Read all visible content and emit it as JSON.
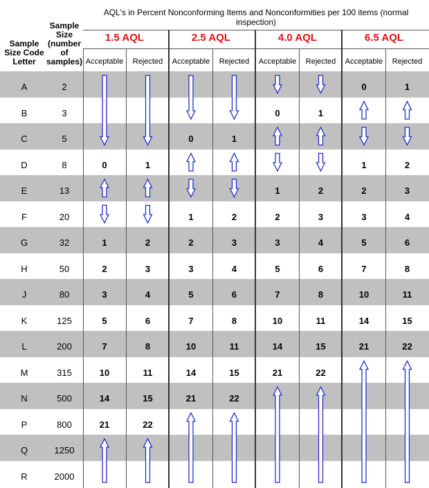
{
  "title": "AQL's in Percent Nonconforming Items and Nonconformities per 100 items (normal inspection)",
  "headers": {
    "code_line1": "Sample",
    "code_line2": "Size Code",
    "code_line3": "Letter",
    "size_line1": "Sample",
    "size_line2": "Size",
    "size_line3": "(number",
    "size_line4": "of",
    "size_line5": "samples)"
  },
  "aql_headers": [
    "1.5 AQL",
    "2.5 AQL",
    "4.0 AQL",
    "6.5 AQL"
  ],
  "sub_headers": {
    "accept": "Acceptable",
    "reject": "Rejected"
  },
  "rows": [
    {
      "code": "A",
      "size": "2",
      "v": [
        "",
        "",
        "",
        "",
        "",
        "",
        "0",
        "1"
      ]
    },
    {
      "code": "B",
      "size": "3",
      "v": [
        "",
        "",
        "",
        "",
        "0",
        "1",
        "",
        ""
      ]
    },
    {
      "code": "C",
      "size": "5",
      "v": [
        "",
        "",
        "0",
        "1",
        "",
        "",
        "",
        ""
      ]
    },
    {
      "code": "D",
      "size": "8",
      "v": [
        "0",
        "1",
        "",
        "",
        "",
        "",
        "1",
        "2"
      ]
    },
    {
      "code": "E",
      "size": "13",
      "v": [
        "",
        "",
        "",
        "",
        "1",
        "2",
        "2",
        "3"
      ]
    },
    {
      "code": "F",
      "size": "20",
      "v": [
        "",
        "",
        "1",
        "2",
        "2",
        "3",
        "3",
        "4"
      ]
    },
    {
      "code": "G",
      "size": "32",
      "v": [
        "1",
        "2",
        "2",
        "3",
        "3",
        "4",
        "5",
        "6"
      ]
    },
    {
      "code": "H",
      "size": "50",
      "v": [
        "2",
        "3",
        "3",
        "4",
        "5",
        "6",
        "7",
        "8"
      ]
    },
    {
      "code": "J",
      "size": "80",
      "v": [
        "3",
        "4",
        "5",
        "6",
        "7",
        "8",
        "10",
        "11"
      ]
    },
    {
      "code": "K",
      "size": "125",
      "v": [
        "5",
        "6",
        "7",
        "8",
        "10",
        "11",
        "14",
        "15"
      ]
    },
    {
      "code": "L",
      "size": "200",
      "v": [
        "7",
        "8",
        "10",
        "11",
        "14",
        "15",
        "21",
        "22"
      ]
    },
    {
      "code": "M",
      "size": "315",
      "v": [
        "10",
        "11",
        "14",
        "15",
        "21",
        "22",
        "",
        ""
      ]
    },
    {
      "code": "N",
      "size": "500",
      "v": [
        "14",
        "15",
        "21",
        "22",
        "",
        "",
        "",
        ""
      ]
    },
    {
      "code": "P",
      "size": "800",
      "v": [
        "21",
        "22",
        "",
        "",
        "",
        "",
        "",
        ""
      ]
    },
    {
      "code": "Q",
      "size": "1250",
      "v": [
        "",
        "",
        "",
        "",
        "",
        "",
        "",
        ""
      ]
    },
    {
      "code": "R",
      "size": "2000",
      "v": [
        "",
        "",
        "",
        "",
        "",
        "",
        "",
        ""
      ]
    }
  ],
  "colors": {
    "band": "#c0c0c0",
    "aql_header": "#e01010",
    "arrow": "#2030d0"
  }
}
